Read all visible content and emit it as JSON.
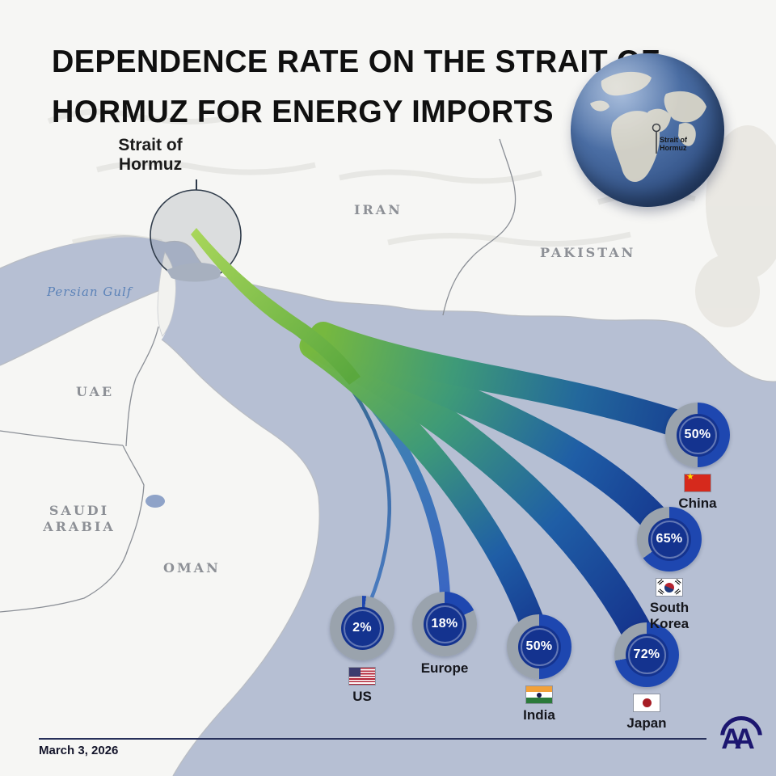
{
  "title": {
    "line1": "DEPENDENCE RATE ON THE STRAIT OF",
    "line2": "HORMUZ FOR ENERGY IMPORTS"
  },
  "map_labels": {
    "iran": "IRAN",
    "pakistan": "PAKISTAN",
    "uae": "UAE",
    "saudi_arabia": "SAUDI ARABIA",
    "oman": "OMAN",
    "persian_gulf": "Persian Gulf"
  },
  "strait_callout": "Strait of Hormuz",
  "globe": {
    "label": "Strait of Hormuz"
  },
  "destinations": [
    {
      "id": "us",
      "label": "US",
      "value": 2,
      "value_label": "2%",
      "flag": "us"
    },
    {
      "id": "europe",
      "label": "Europe",
      "value": 18,
      "value_label": "18%",
      "flag": null
    },
    {
      "id": "india",
      "label": "India",
      "value": 50,
      "value_label": "50%",
      "flag": "india"
    },
    {
      "id": "japan",
      "label": "Japan",
      "value": 72,
      "value_label": "72%",
      "flag": "japan"
    },
    {
      "id": "south-korea",
      "label": "South Korea",
      "value": 65,
      "value_label": "65%",
      "flag": "south-korea"
    },
    {
      "id": "china",
      "label": "China",
      "value": 50,
      "value_label": "50%",
      "flag": "china"
    }
  ],
  "chart_data": {
    "type": "pie",
    "title": "Dependence rate on the Strait of Hormuz for energy imports",
    "categories": [
      "US",
      "Europe",
      "India",
      "Japan",
      "South Korea",
      "China"
    ],
    "values": [
      2,
      18,
      50,
      72,
      65,
      50
    ],
    "unit": "%",
    "note": "Each value rendered as a donut gauge placed at the end of a flow ribbon from the Strait of Hormuz"
  },
  "footer": {
    "date": "March 3, 2026",
    "agency_logo": "AA"
  },
  "colors": {
    "water": "#b6bfd3",
    "land": "#f6f6f4",
    "ring_blue": "#1e47b0",
    "ring_gray": "#9aa3ad",
    "donut_fill": "#14338f",
    "flow_green": "#8dc63f",
    "flow_teal": "#2f8f7f",
    "flow_blue": "#16398f"
  }
}
